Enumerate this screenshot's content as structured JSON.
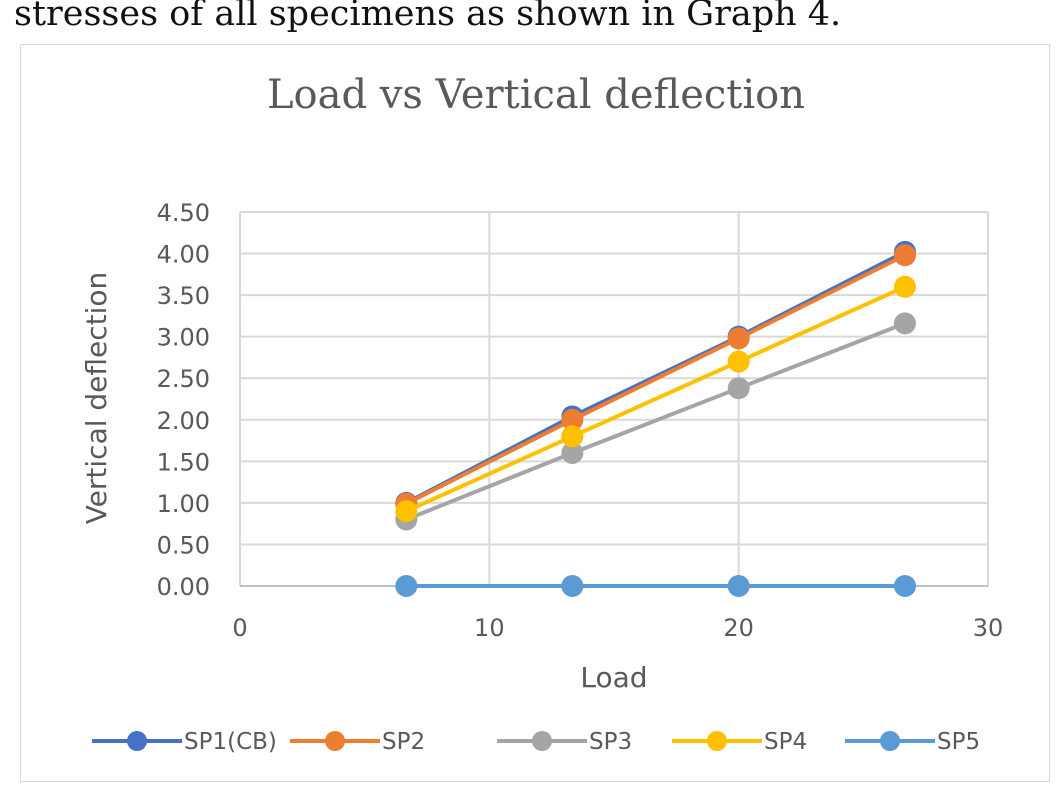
{
  "caption": "stresses of all specimens as shown in Graph 4.",
  "chart_data": {
    "type": "line",
    "title": "Load vs Vertical  deflection",
    "xlabel": "Load",
    "ylabel": "Vertical deflection",
    "xlim": [
      0,
      30
    ],
    "ylim": [
      0,
      4.5
    ],
    "xticks": [
      "0",
      "10",
      "20",
      "30"
    ],
    "yticks": [
      "0.00",
      "0.50",
      "1.00",
      "1.50",
      "2.00",
      "2.50",
      "3.00",
      "3.50",
      "4.00",
      "4.50"
    ],
    "grid": true,
    "legend_position": "bottom",
    "x": [
      6.67,
      13.33,
      20,
      26.67
    ],
    "series": [
      {
        "name": "SP1(CB)",
        "color": "#4472c4",
        "values": [
          1.0,
          2.04,
          3.0,
          4.02
        ]
      },
      {
        "name": "SP2",
        "color": "#ed7d31",
        "values": [
          0.99,
          2.0,
          2.98,
          3.98
        ]
      },
      {
        "name": "SP3",
        "color": "#a5a5a5",
        "values": [
          0.8,
          1.6,
          2.38,
          3.16
        ]
      },
      {
        "name": "SP4",
        "color": "#ffc000",
        "values": [
          0.9,
          1.8,
          2.7,
          3.6
        ]
      },
      {
        "name": "SP5",
        "color": "#5b9bd5",
        "values": [
          0.0,
          0.0,
          0.0,
          0.0
        ]
      }
    ]
  }
}
